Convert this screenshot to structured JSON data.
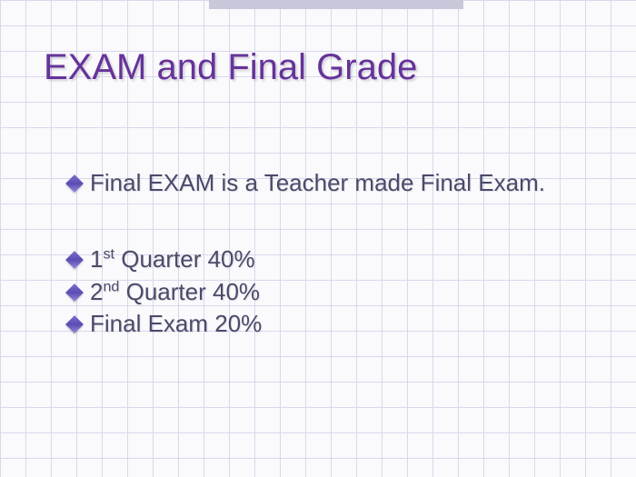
{
  "slide": {
    "title": "EXAM and Final Grade",
    "title_color": "#663399",
    "title_fontsize": 40,
    "background_color": "#fafafc",
    "grid_color": "#d8d8ec",
    "grid_size": 28,
    "text_color": "#4a4a6a",
    "bullet_color": "#5a4db0",
    "body_fontsize": 26,
    "bullets": [
      {
        "text": "Final EXAM is a Teacher made Final Exam.",
        "ordinal": ""
      },
      {
        "text": " Quarter 40%",
        "ordinal": "1",
        "sup": "st"
      },
      {
        "text": " Quarter 40%",
        "ordinal": "2",
        "sup": "nd"
      },
      {
        "text": "Final Exam  20%",
        "ordinal": ""
      }
    ]
  }
}
